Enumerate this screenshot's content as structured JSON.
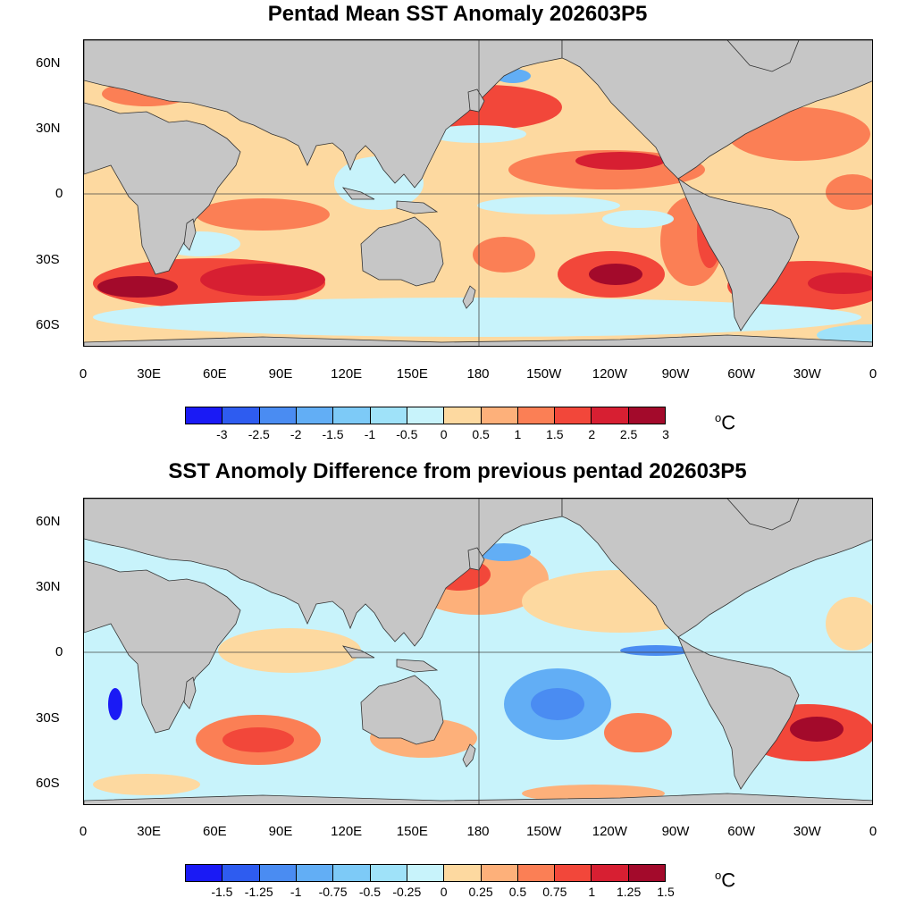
{
  "maps": [
    {
      "title": "Pentad Mean SST Anomaly 202603P5",
      "lat_labels": [
        "60N",
        "30N",
        "0",
        "30S",
        "60S"
      ],
      "lon_labels": [
        "0",
        "30E",
        "60E",
        "90E",
        "120E",
        "150E",
        "180",
        "150W",
        "120W",
        "90W",
        "60W",
        "30W",
        "0"
      ],
      "colorbar_labels": [
        "-3",
        "-2.5",
        "-2",
        "-1.5",
        "-1",
        "-0.5",
        "0",
        "0.5",
        "1",
        "1.5",
        "2",
        "2.5",
        "3"
      ],
      "units": "C",
      "degree_symbol": "o"
    },
    {
      "title": "SST Anomoly Difference from previous pentad 202603P5",
      "lat_labels": [
        "60N",
        "30N",
        "0",
        "30S",
        "60S"
      ],
      "lon_labels": [
        "0",
        "30E",
        "60E",
        "90E",
        "120E",
        "150E",
        "180",
        "150W",
        "120W",
        "90W",
        "60W",
        "30W",
        "0"
      ],
      "colorbar_labels": [
        "-1.5",
        "-1.25",
        "-1",
        "-0.75",
        "-0.5",
        "-0.25",
        "0",
        "0.25",
        "0.5",
        "0.75",
        "1",
        "1.25",
        "1.5"
      ],
      "units": "C",
      "degree_symbol": "o"
    }
  ],
  "colors": {
    "land": "#c6c6c6",
    "palette": [
      "#1a1af5",
      "#2e5cf0",
      "#4a8cf2",
      "#62aef5",
      "#7dcaf7",
      "#9fe2f9",
      "#c8f3fb",
      "#fdd9a0",
      "#fdb07a",
      "#fb7f55",
      "#f2473a",
      "#d71f32",
      "#a30a2b"
    ]
  }
}
